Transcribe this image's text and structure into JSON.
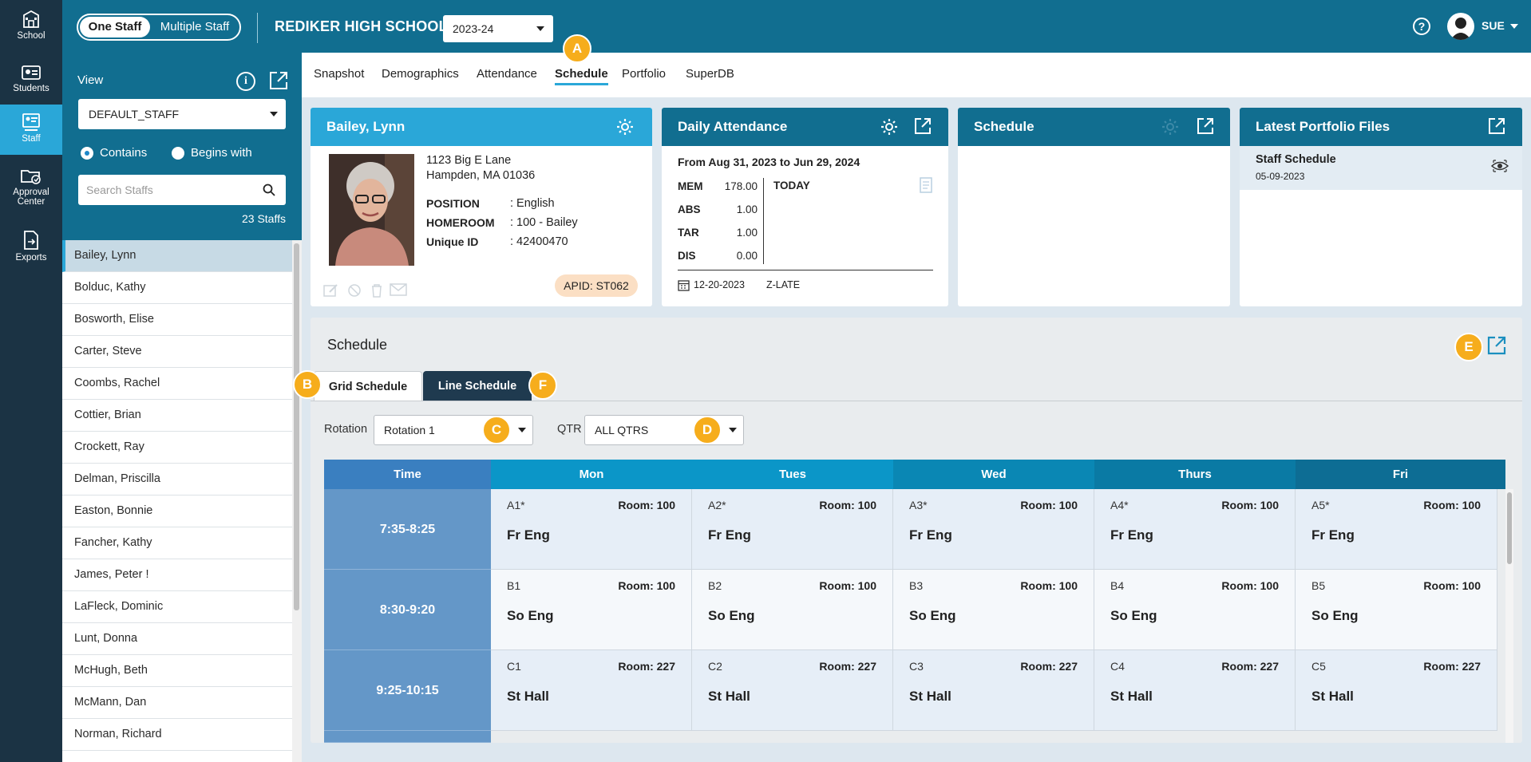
{
  "nav_rail": {
    "items": [
      {
        "label": "School",
        "icon": "school-icon"
      },
      {
        "label": "Students",
        "icon": "students-icon"
      },
      {
        "label": "Staff",
        "icon": "staff-icon",
        "active": true
      },
      {
        "label": "Approval Center",
        "icon": "approval-center-icon"
      },
      {
        "label": "Exports",
        "icon": "exports-icon"
      }
    ]
  },
  "header": {
    "toggle_one": "One Staff",
    "toggle_multiple": "Multiple Staff",
    "school_name": "REDIKER HIGH SCHOOL",
    "year": "2023-24",
    "help": "?",
    "user": "SUE"
  },
  "callouts": {
    "a": "A",
    "b": "B",
    "c": "C",
    "d": "D",
    "e": "E",
    "f": "F"
  },
  "staff_panel": {
    "view_label": "View",
    "view_value": "DEFAULT_STAFF",
    "radio_contains": "Contains",
    "radio_begins": "Begins with",
    "search_placeholder": "Search Staffs",
    "count": "23 Staffs",
    "staff": [
      "Bailey, Lynn",
      "Bolduc, Kathy",
      "Bosworth, Elise",
      "Carter, Steve",
      "Coombs, Rachel",
      "Cottier, Brian",
      "Crockett, Ray",
      "Delman, Priscilla",
      "Easton, Bonnie",
      "Fancher, Kathy",
      "James, Peter !",
      "LaFleck, Dominic",
      "Lunt, Donna",
      "McHugh, Beth",
      "McMann, Dan",
      "Norman, Richard"
    ]
  },
  "tabs": [
    "Snapshot",
    "Demographics",
    "Attendance",
    "Schedule",
    "Portfolio",
    "SuperDB"
  ],
  "profile": {
    "name": "Bailey, Lynn",
    "address1": "1123 Big E Lane",
    "address2": "Hampden, MA 01036",
    "position_label": "POSITION",
    "position": ": English",
    "homeroom_label": "HOMEROOM",
    "homeroom": ": 100 - Bailey",
    "uid_label": "Unique ID",
    "uid": ": 42400470",
    "apid": "APID: ST062"
  },
  "attendance": {
    "title": "Daily Attendance",
    "range": "From Aug 31, 2023 to Jun 29, 2024",
    "stats": [
      {
        "key": "MEM",
        "val": "178.00"
      },
      {
        "key": "ABS",
        "val": "1.00"
      },
      {
        "key": "TAR",
        "val": "1.00"
      },
      {
        "key": "DIS",
        "val": "0.00"
      }
    ],
    "today": "TODAY",
    "date": "12-20-2023",
    "code": "Z-LATE"
  },
  "schedule_card": {
    "title": "Schedule"
  },
  "portfolio": {
    "title": "Latest Portfolio Files",
    "file_name": "Staff Schedule",
    "file_date": "05-09-2023"
  },
  "schedule": {
    "title": "Schedule",
    "tab_grid": "Grid Schedule",
    "tab_line": "Line Schedule",
    "rotation_label": "Rotation",
    "rotation_value": "Rotation 1",
    "qtr_label": "QTR",
    "qtr_value": "ALL QTRS",
    "header_time": "Time",
    "days": [
      "Mon",
      "Tues",
      "Wed",
      "Thurs",
      "Fri"
    ],
    "rows": [
      {
        "time": "7:35-8:25",
        "cells": [
          {
            "code": "A1*",
            "room": "Room: 100",
            "course": "Fr Eng"
          },
          {
            "code": "A2*",
            "room": "Room: 100",
            "course": "Fr Eng"
          },
          {
            "code": "A3*",
            "room": "Room: 100",
            "course": "Fr Eng"
          },
          {
            "code": "A4*",
            "room": "Room: 100",
            "course": "Fr Eng"
          },
          {
            "code": "A5*",
            "room": "Room: 100",
            "course": "Fr Eng"
          }
        ]
      },
      {
        "time": "8:30-9:20",
        "cells": [
          {
            "code": "B1",
            "room": "Room: 100",
            "course": "So Eng"
          },
          {
            "code": "B2",
            "room": "Room: 100",
            "course": "So Eng"
          },
          {
            "code": "B3",
            "room": "Room: 100",
            "course": "So Eng"
          },
          {
            "code": "B4",
            "room": "Room: 100",
            "course": "So Eng"
          },
          {
            "code": "B5",
            "room": "Room: 100",
            "course": "So Eng"
          }
        ]
      },
      {
        "time": "9:25-10:15",
        "cells": [
          {
            "code": "C1",
            "room": "Room: 227",
            "course": "St Hall"
          },
          {
            "code": "C2",
            "room": "Room: 227",
            "course": "St Hall"
          },
          {
            "code": "C3",
            "room": "Room: 227",
            "course": "St Hall"
          },
          {
            "code": "C4",
            "room": "Room: 227",
            "course": "St Hall"
          },
          {
            "code": "C5",
            "room": "Room: 227",
            "course": "St Hall"
          }
        ]
      }
    ]
  },
  "colors": {
    "header": "#116e90",
    "accent": "#2aa7d8",
    "rail": "#1b3344",
    "callout": "#f6ad1c",
    "apid_bg": "#fbdfc4"
  }
}
